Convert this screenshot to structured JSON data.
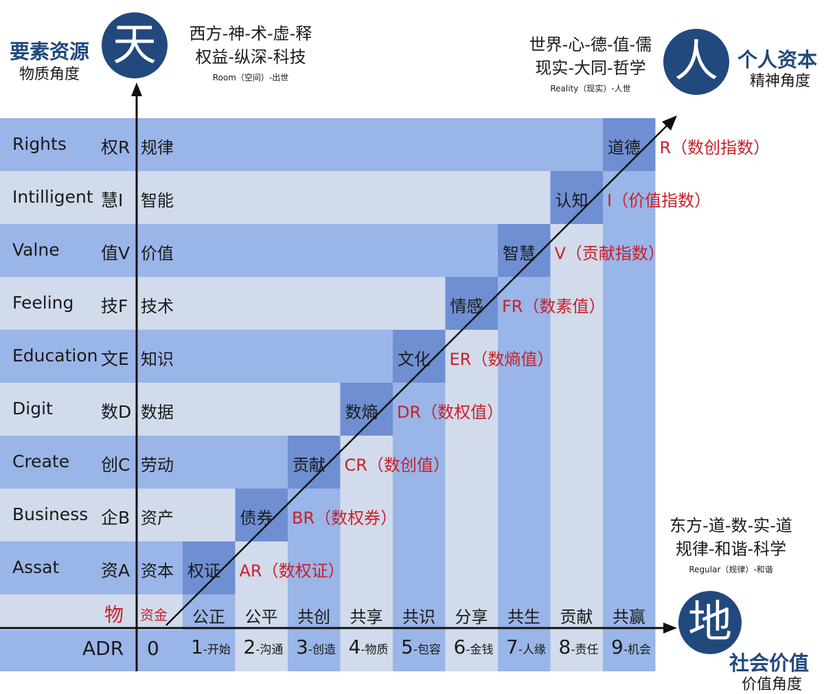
{
  "corners": {
    "top_left": {
      "glyph": "天",
      "title": "要素资源",
      "subtitle": "物质角度",
      "line1": "西方-神-术-虚-释",
      "line2": "权益-纵深-科技",
      "small": "Room（空间）-出世"
    },
    "top_right": {
      "glyph": "人",
      "title": "个人资本",
      "subtitle": "精神角度",
      "line1": "世界-心-德-值-儒",
      "line2": "现实-大同-哲学",
      "small": "Reality（现实）-人世"
    },
    "bottom_right": {
      "glyph": "地",
      "title": "社会价值",
      "subtitle": "价值角度",
      "line1": "东方-道-数-实-道",
      "line2": "规律-和谐-科学",
      "small": "Regular（规律）-和谐"
    }
  },
  "rows": [
    {
      "en": "Rights",
      "code": "权R",
      "label": "规律",
      "diag": "道德",
      "index": "R（数创指数）"
    },
    {
      "en": "Intilligent",
      "code": "慧I",
      "label": "智能",
      "diag": "认知",
      "index": "I（价值指数）"
    },
    {
      "en": "Valne",
      "code": "值V",
      "label": "价值",
      "diag": "智慧",
      "index": "V（贡献指数）"
    },
    {
      "en": "Feeling",
      "code": "技F",
      "label": "技术",
      "diag": "情感",
      "index": "FR（数素值）"
    },
    {
      "en": "Education",
      "code": "文E",
      "label": "知识",
      "diag": "文化",
      "index": "ER（数熵值）"
    },
    {
      "en": "Digit",
      "code": "数D",
      "label": "数据",
      "diag": "数熵",
      "index": "DR（数权值）"
    },
    {
      "en": "Create",
      "code": "创C",
      "label": "劳动",
      "diag": "贡献",
      "index": "CR（数创值）"
    },
    {
      "en": "Business",
      "code": "企B",
      "label": "资产",
      "diag": "债券",
      "index": "BR（数权券）"
    },
    {
      "en": "Assat",
      "code": "资A",
      "label": "资本",
      "diag": "权证",
      "index": "AR（数权证）"
    }
  ],
  "bottom_row": {
    "code": "物",
    "label": "资金",
    "columns": [
      "公正",
      "公平",
      "共创",
      "共享",
      "共识",
      "分享",
      "共生",
      "贡献",
      "共赢"
    ]
  },
  "axis_row": {
    "label": "ADR",
    "zero": "0",
    "items": [
      {
        "n": "1",
        "t": "-开始"
      },
      {
        "n": "2",
        "t": "-沟通"
      },
      {
        "n": "3",
        "t": "-创造"
      },
      {
        "n": "4",
        "t": "-物质"
      },
      {
        "n": "5",
        "t": "-包容"
      },
      {
        "n": "6",
        "t": "-金钱"
      },
      {
        "n": "7",
        "t": "-人缘"
      },
      {
        "n": "8",
        "t": "-责任"
      },
      {
        "n": "9",
        "t": "-机会"
      }
    ]
  },
  "colors": {
    "row_dark": "#9ab5e8",
    "row_light": "#d1dbeb",
    "diag_cell": "#6f8fd3",
    "circle": "#21497e",
    "index_text": "#c8202a"
  }
}
